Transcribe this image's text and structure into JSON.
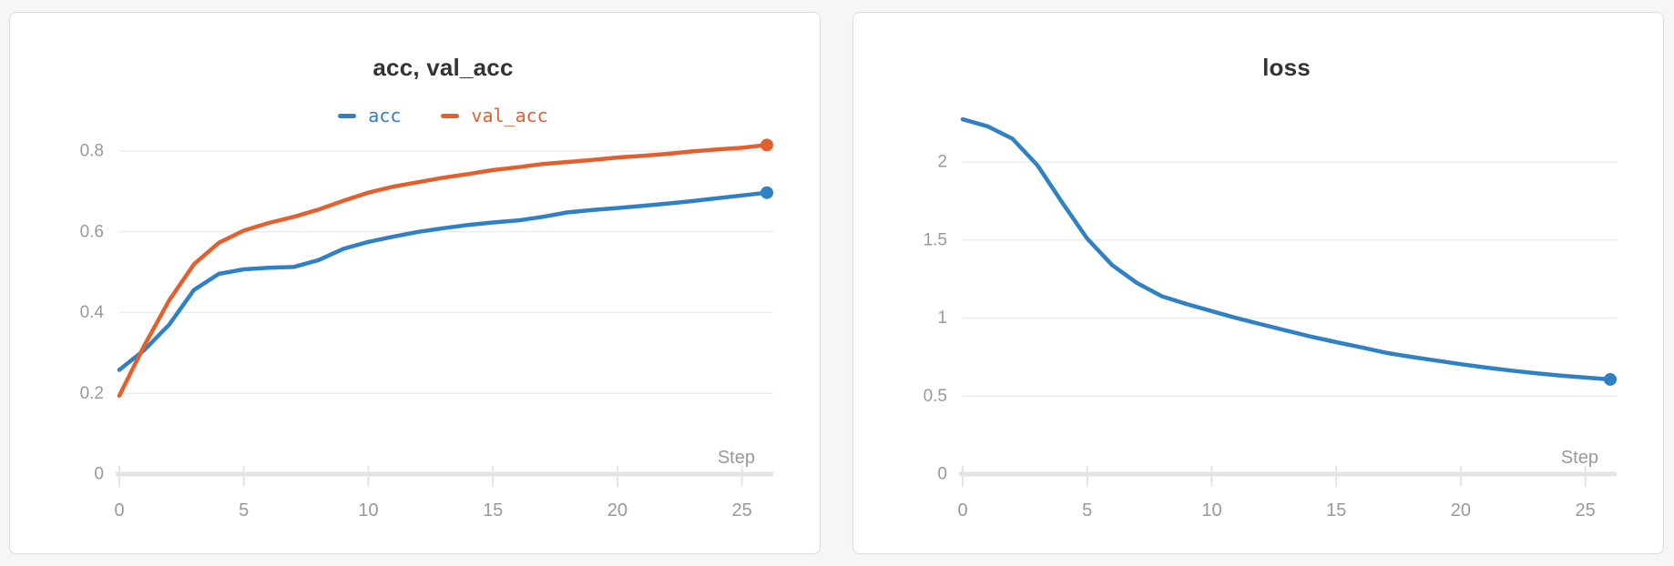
{
  "page": {
    "background_color": "#f6f6f7",
    "card_background": "#ffffff",
    "card_border_color": "#dcdcdc"
  },
  "theme": {
    "grid_color": "#ececec",
    "axis_color": "#e4e4e4",
    "tick_label_color": "#98999b",
    "title_color": "#333333",
    "accent_blue": "#3080c4",
    "accent_orange": "#e2602f"
  },
  "chart_data": [
    {
      "type": "line",
      "title": "acc, val_acc",
      "xlabel": "Step",
      "legend_position": "top",
      "grid": true,
      "x": [
        0,
        1,
        2,
        3,
        4,
        5,
        6,
        7,
        8,
        9,
        10,
        11,
        12,
        13,
        14,
        15,
        16,
        17,
        18,
        19,
        20,
        21,
        22,
        23,
        24,
        25,
        26
      ],
      "xlim": [
        0,
        26
      ],
      "ylim": [
        0,
        0.83
      ],
      "xticks": [
        0,
        5,
        10,
        15,
        20,
        25
      ],
      "xtick_labels": [
        "0",
        "5",
        "10",
        "15",
        "20",
        "25"
      ],
      "yticks": [
        0,
        0.2,
        0.4,
        0.6,
        0.8
      ],
      "ytick_labels": [
        "0",
        "0.2",
        "0.4",
        "0.6",
        "0.8"
      ],
      "series": [
        {
          "name": "acc",
          "color": "#3080c4",
          "values": [
            0.258,
            0.307,
            0.37,
            0.456,
            0.496,
            0.507,
            0.511,
            0.513,
            0.53,
            0.558,
            0.575,
            0.588,
            0.6,
            0.609,
            0.617,
            0.623,
            0.628,
            0.637,
            0.648,
            0.654,
            0.659,
            0.664,
            0.67,
            0.676,
            0.683,
            0.69,
            0.697
          ]
        },
        {
          "name": "val_acc",
          "color": "#e2602f",
          "values": [
            0.194,
            0.318,
            0.43,
            0.52,
            0.573,
            0.603,
            0.622,
            0.637,
            0.655,
            0.677,
            0.697,
            0.712,
            0.723,
            0.734,
            0.743,
            0.753,
            0.76,
            0.768,
            0.773,
            0.778,
            0.784,
            0.788,
            0.793,
            0.799,
            0.804,
            0.808,
            0.815
          ]
        }
      ]
    },
    {
      "type": "line",
      "title": "loss",
      "xlabel": "Step",
      "legend_position": "none",
      "grid": true,
      "x": [
        0,
        1,
        2,
        3,
        4,
        5,
        6,
        7,
        8,
        9,
        10,
        11,
        12,
        13,
        14,
        15,
        16,
        17,
        18,
        19,
        20,
        21,
        22,
        23,
        24,
        25,
        26
      ],
      "xlim": [
        0,
        26
      ],
      "ylim": [
        0,
        2.33
      ],
      "xticks": [
        0,
        5,
        10,
        15,
        20,
        25
      ],
      "xtick_labels": [
        "0",
        "5",
        "10",
        "15",
        "20",
        "25"
      ],
      "yticks": [
        0,
        0.5,
        1,
        1.5,
        2
      ],
      "ytick_labels": [
        "0",
        "0.5",
        "1",
        "1.5",
        "2"
      ],
      "series": [
        {
          "name": "loss",
          "color": "#3080c4",
          "values": [
            2.275,
            2.23,
            2.15,
            1.98,
            1.74,
            1.51,
            1.34,
            1.225,
            1.14,
            1.09,
            1.045,
            1.0,
            0.96,
            0.92,
            0.881,
            0.846,
            0.813,
            0.778,
            0.752,
            0.728,
            0.705,
            0.683,
            0.664,
            0.647,
            0.632,
            0.619,
            0.607
          ]
        }
      ]
    }
  ]
}
